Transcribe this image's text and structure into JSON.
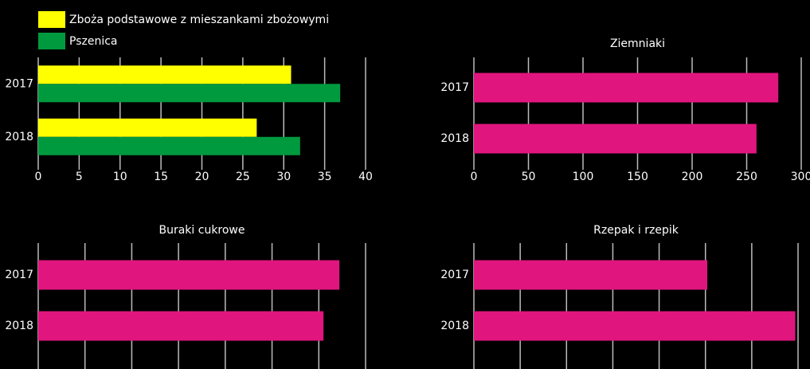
{
  "chart_data": [
    {
      "type": "bar",
      "categories": [
        "2017",
        "2018"
      ],
      "series": [
        {
          "name": "Zboża podstawowe z mieszankami zbożowymi",
          "color": "#ffff00",
          "values": [
            30.9,
            26.7
          ]
        },
        {
          "name": "Pszenica",
          "color": "#009a3e",
          "values": [
            36.9,
            32.0
          ]
        }
      ],
      "xlim": [
        0,
        40
      ],
      "xticks": [
        0,
        5,
        10,
        15,
        20,
        25,
        30,
        35,
        40
      ],
      "grid": true
    },
    {
      "type": "bar",
      "title": "Ziemniaki",
      "categories": [
        "2017",
        "2018"
      ],
      "values": [
        279,
        259
      ],
      "color": "#e0157e",
      "xlim": [
        0,
        300
      ],
      "xticks": [
        0,
        50,
        100,
        150,
        200,
        250,
        300
      ],
      "grid": true
    },
    {
      "type": "bar",
      "title": "Buraki cukrowe",
      "categories": [
        "2017",
        "2018"
      ],
      "values": [
        644,
        610
      ],
      "color": "#e0157e",
      "xlim": [
        0,
        700
      ],
      "xticks": [
        0,
        100,
        200,
        300,
        400,
        500,
        600,
        700
      ],
      "grid": true
    },
    {
      "type": "bar",
      "title": "Rzepak i rzepik",
      "categories": [
        "2017",
        "2018"
      ],
      "values": [
        25.2,
        34.7
      ],
      "color": "#e0157e",
      "xlim": [
        0,
        35
      ],
      "xticks": [
        0,
        5,
        10,
        15,
        20,
        25,
        30,
        35
      ],
      "grid": true
    }
  ]
}
